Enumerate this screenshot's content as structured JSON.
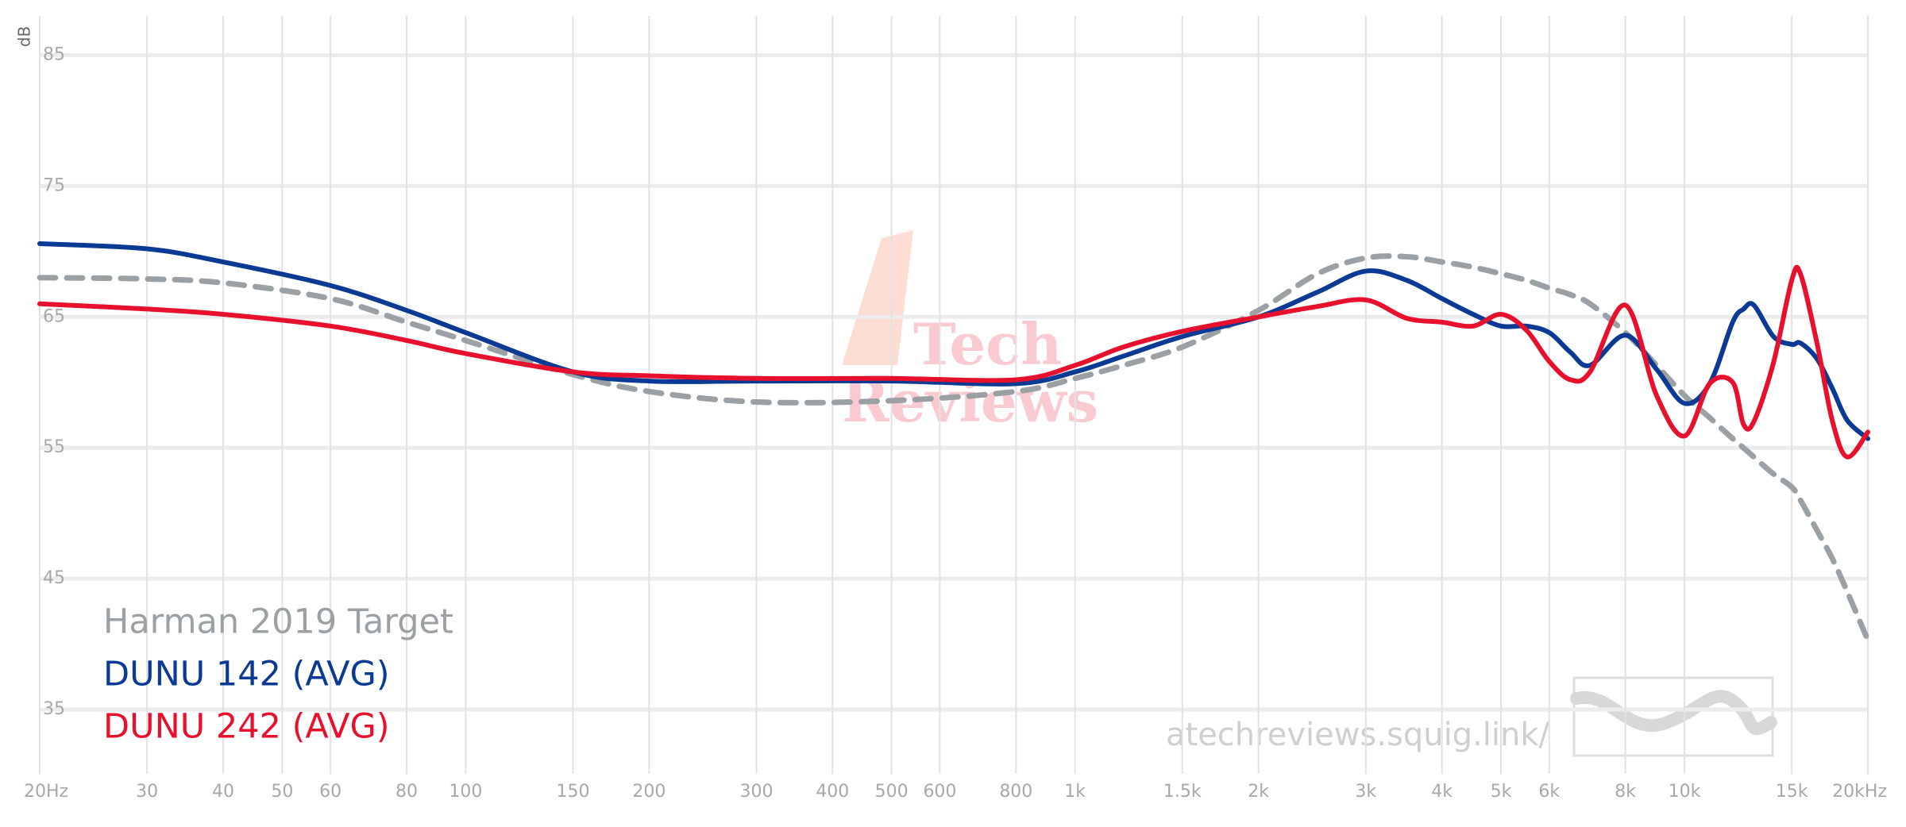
{
  "chart_data": {
    "type": "line",
    "y_label": "dB",
    "watermark": "atechreviews.squig.link/",
    "logo_text": [
      "Tech",
      "Reviews"
    ],
    "x": [
      20,
      30,
      40,
      60,
      80,
      100,
      150,
      200,
      300,
      500,
      800,
      1000,
      1200,
      1500,
      2000,
      2500,
      3000,
      3500,
      4000,
      4500,
      5000,
      5500,
      6000,
      6500,
      7000,
      8000,
      9000,
      10000,
      11000,
      12000,
      12500,
      13000,
      14000,
      15000,
      15500,
      16500,
      17500,
      18500,
      20000
    ],
    "series": [
      {
        "name": "Harman 2019 Target",
        "color": "#9aa0a4",
        "dashed": true,
        "values": [
          68.0,
          67.9,
          67.6,
          66.4,
          64.6,
          63.2,
          60.6,
          59.3,
          58.5,
          58.6,
          59.3,
          60.3,
          61.3,
          62.7,
          65.5,
          68.3,
          69.5,
          69.6,
          69.2,
          68.8,
          68.3,
          67.8,
          67.2,
          66.7,
          66.0,
          63.8,
          61.3,
          59.0,
          57.3,
          55.7,
          55.0,
          54.3,
          53.0,
          52.0,
          51.0,
          48.7,
          46.5,
          44.0,
          40.3
        ]
      },
      {
        "name": "DUNU 142 (AVG)",
        "color": "#0a3a94",
        "dashed": false,
        "values": [
          70.6,
          70.2,
          69.2,
          67.4,
          65.5,
          63.8,
          60.8,
          60.1,
          60.1,
          60.1,
          59.9,
          60.8,
          62.0,
          63.5,
          65.0,
          66.9,
          68.5,
          67.8,
          66.4,
          65.2,
          64.3,
          64.3,
          63.8,
          62.3,
          61.3,
          63.6,
          61.0,
          58.4,
          59.9,
          64.6,
          65.6,
          65.9,
          63.5,
          62.9,
          63.0,
          61.8,
          59.5,
          57.1,
          55.7
        ]
      },
      {
        "name": "DUNU 242 (AVG)",
        "color": "#e8112d",
        "dashed": false,
        "values": [
          66.0,
          65.6,
          65.2,
          64.3,
          63.2,
          62.2,
          60.8,
          60.5,
          60.3,
          60.3,
          60.2,
          61.3,
          62.7,
          63.9,
          65.0,
          65.8,
          66.3,
          64.9,
          64.6,
          64.3,
          65.2,
          64.0,
          61.6,
          60.2,
          60.8,
          65.9,
          59.0,
          55.9,
          59.9,
          60.0,
          56.8,
          57.0,
          61.5,
          67.8,
          68.3,
          63.0,
          57.0,
          54.3,
          56.2
        ]
      }
    ],
    "x_log": true,
    "xlim": [
      20,
      20000
    ],
    "xticks": [
      {
        "value": 20,
        "label": "20Hz"
      },
      30,
      40,
      50,
      60,
      80,
      100,
      150,
      200,
      300,
      400,
      500,
      600,
      800,
      {
        "value": 1000,
        "label": "1k"
      },
      {
        "value": 1500,
        "label": "1.5k"
      },
      {
        "value": 2000,
        "label": "2k"
      },
      {
        "value": 3000,
        "label": "3k"
      },
      {
        "value": 4000,
        "label": "4k"
      },
      {
        "value": 5000,
        "label": "5k"
      },
      {
        "value": 6000,
        "label": "6k"
      },
      {
        "value": 8000,
        "label": "8k"
      },
      {
        "value": 10000,
        "label": "10k"
      },
      {
        "value": 15000,
        "label": "15k"
      },
      {
        "value": 20000,
        "label": "20kHz"
      }
    ],
    "ylim": [
      31,
      88
    ],
    "yticks": [
      35,
      45,
      55,
      65,
      75,
      85
    ],
    "grid": true,
    "legend": "lower left"
  }
}
